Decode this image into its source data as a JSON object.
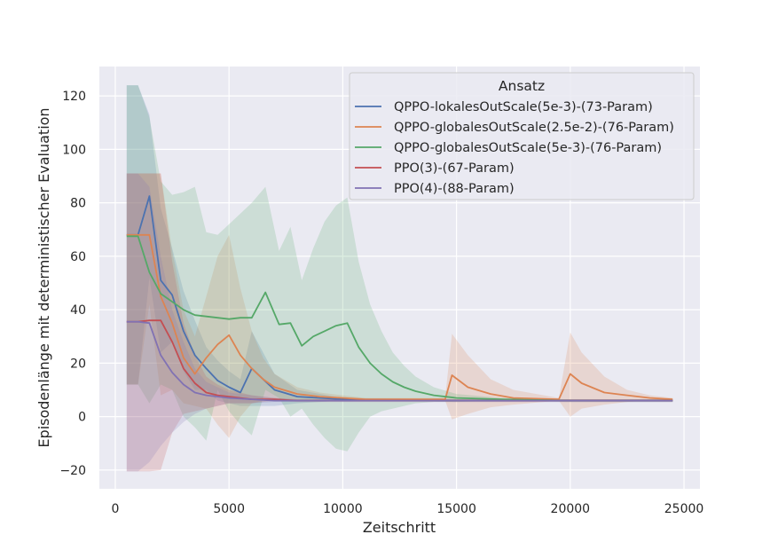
{
  "chart_data": {
    "type": "line",
    "xlabel": "Zeitschritt",
    "ylabel": "Episodenlänge mit deterministischer Evaluation",
    "xlim": [
      -700,
      25700
    ],
    "ylim": [
      -27,
      131
    ],
    "xticks": [
      0,
      5000,
      10000,
      15000,
      20000,
      25000
    ],
    "yticks": [
      -20,
      0,
      20,
      40,
      60,
      80,
      100,
      120
    ],
    "grid": true,
    "legend": {
      "title": "Ansatz",
      "position": "top-right"
    },
    "series": [
      {
        "name": "QPPO-lokalesOutScale(5e-3)-(73-Param)",
        "color": "#4c72b0",
        "x": [
          500,
          1000,
          1500,
          2000,
          2500,
          3000,
          3500,
          4000,
          4500,
          5000,
          5500,
          6000,
          6500,
          7000,
          8000,
          10000,
          15000,
          20000,
          24500
        ],
        "y": [
          68,
          68,
          82.5,
          51,
          45.5,
          32,
          23,
          18,
          13.5,
          11,
          9,
          18,
          14,
          10,
          7.5,
          6.5,
          6,
          6,
          6
        ],
        "upper": [
          124,
          124,
          113,
          78,
          63,
          47,
          36,
          26,
          21,
          17,
          14,
          32,
          24,
          16,
          10,
          7,
          6.5,
          6.5,
          6.5
        ],
        "lower": [
          12,
          12,
          52,
          24,
          28,
          17,
          10,
          10,
          6,
          5,
          4,
          4,
          4,
          4,
          5,
          6,
          5.5,
          5.5,
          5.5
        ]
      },
      {
        "name": "QPPO-globalesOutScale(2.5e-2)-(76-Param)",
        "color": "#dd8452",
        "x": [
          500,
          1000,
          1500,
          2000,
          2500,
          3000,
          3500,
          4000,
          4500,
          5000,
          5500,
          6000,
          6500,
          7000,
          8000,
          9000,
          10000,
          11000,
          14500,
          14800,
          15500,
          16500,
          17500,
          19500,
          20000,
          20500,
          21500,
          22500,
          23500,
          24500
        ],
        "y": [
          68,
          68,
          68,
          45,
          35,
          22,
          16,
          22,
          27,
          30.5,
          23,
          18,
          14,
          11,
          8.5,
          7.5,
          7,
          6.5,
          6.5,
          15.5,
          11,
          8.5,
          7,
          6.5,
          16,
          12.5,
          9,
          8,
          7,
          6.5
        ],
        "upper": [
          91,
          91,
          91,
          91,
          62,
          40,
          30,
          45,
          60,
          68,
          48,
          32,
          22,
          16,
          11,
          9,
          8,
          7,
          7,
          31,
          23,
          14,
          10,
          7,
          31.5,
          24,
          15,
          10,
          8,
          7
        ],
        "lower": [
          12,
          12,
          42,
          8,
          10,
          5,
          4,
          3,
          -3,
          -8,
          0,
          5,
          6,
          6,
          6,
          6,
          6,
          6,
          6,
          -1,
          1,
          3.5,
          4.5,
          6,
          0,
          3,
          4.5,
          5.5,
          6,
          6
        ]
      },
      {
        "name": "QPPO-globalesOutScale(5e-3)-(76-Param)",
        "color": "#55a868",
        "x": [
          500,
          1000,
          1500,
          2000,
          2500,
          3000,
          3500,
          4000,
          4500,
          5000,
          5500,
          6000,
          6600,
          7200,
          7700,
          8200,
          8700,
          9200,
          9700,
          10200,
          10700,
          11200,
          11700,
          12200,
          12700,
          13200,
          14000,
          15000,
          17000,
          20000,
          24500
        ],
        "y": [
          67.5,
          67.5,
          54,
          46,
          43,
          40,
          38,
          37.5,
          37,
          36.5,
          37,
          37,
          46.5,
          34.5,
          35,
          26.5,
          30,
          32,
          34,
          35,
          26,
          20,
          16,
          13,
          11,
          9.5,
          8,
          7,
          6.5,
          6,
          6
        ],
        "upper": [
          124,
          124,
          112,
          88,
          83,
          84,
          86,
          69,
          68,
          72,
          76,
          80,
          86,
          62,
          71,
          51,
          63,
          73,
          79,
          82,
          58,
          42,
          32,
          24,
          19,
          15,
          11,
          8.5,
          7,
          6.5,
          6.5
        ],
        "lower": [
          12,
          12,
          5,
          12,
          10,
          0,
          -4,
          -9,
          10,
          2,
          -3,
          -7,
          10,
          7,
          0,
          3,
          -3,
          -8,
          -12,
          -13,
          -6,
          0,
          2,
          3,
          4,
          5,
          5.5,
          5.5,
          6,
          5.5,
          5.5
        ]
      },
      {
        "name": "PPO(3)-(67-Param)",
        "color": "#c44e52",
        "x": [
          500,
          1000,
          1500,
          2000,
          2500,
          3000,
          3500,
          4000,
          4500,
          5000,
          5500,
          6000,
          7000,
          8000,
          10000,
          15000,
          20000,
          24500
        ],
        "y": [
          35.5,
          35.5,
          36,
          36,
          28,
          18,
          12.5,
          9,
          8,
          7.5,
          7,
          6.5,
          6.5,
          6,
          6,
          6,
          6,
          6
        ],
        "upper": [
          91,
          91,
          91,
          91,
          58,
          35,
          23,
          15,
          12,
          10,
          9,
          8,
          7,
          6.5,
          6.5,
          6.5,
          6.5,
          6.5
        ],
        "lower": [
          -20.5,
          -20.5,
          -20.5,
          -20,
          -6,
          1,
          2,
          3,
          4,
          5,
          5,
          5,
          6,
          5.5,
          5.5,
          5.5,
          5.5,
          5.5
        ]
      },
      {
        "name": "PPO(4)-(88-Param)",
        "color": "#8172b3",
        "x": [
          500,
          1000,
          1500,
          2000,
          2500,
          3000,
          3500,
          4000,
          4500,
          5000,
          6000,
          7000,
          8000,
          10000,
          15000,
          20000,
          24500
        ],
        "y": [
          35.5,
          35.5,
          35,
          23,
          16.5,
          12,
          9,
          8,
          7.5,
          7,
          6.5,
          6,
          6,
          6,
          6,
          6,
          6
        ],
        "upper": [
          91,
          91,
          86,
          60,
          40,
          28,
          18,
          13,
          11,
          9,
          8,
          7,
          6.5,
          6.5,
          6.5,
          6.5,
          6.5
        ],
        "lower": [
          -20.5,
          -20.5,
          -17,
          -11,
          -6,
          -2,
          1,
          3,
          4,
          5,
          5,
          5.5,
          5.5,
          5.5,
          5.5,
          5.5,
          5.5
        ]
      }
    ]
  }
}
